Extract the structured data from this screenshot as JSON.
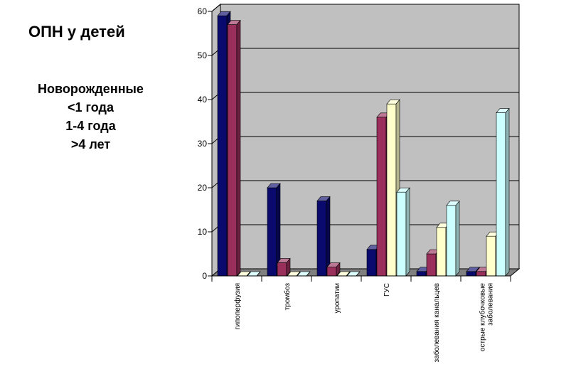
{
  "chart_data": {
    "type": "bar",
    "title": "ОПН у детей",
    "categories": [
      "гипоперфузия",
      "тромбоз",
      "уропатии",
      "ГУС",
      "заболевания канальцев",
      "острые клубочковые заболевания"
    ],
    "series": [
      {
        "name": "Новорожденные",
        "values": [
          59,
          20,
          17,
          6,
          1,
          1
        ]
      },
      {
        "name": "<1 года",
        "values": [
          57,
          3,
          2,
          36,
          5,
          1
        ]
      },
      {
        "name": "1-4 года",
        "values": [
          0,
          0,
          0,
          39,
          11,
          9
        ]
      },
      {
        "name": ">4 лет",
        "values": [
          0,
          0,
          0,
          19,
          16,
          37
        ]
      }
    ],
    "ylim": [
      0,
      60
    ],
    "yticks": [
      "0",
      "10",
      "20",
      "30",
      "40",
      "50",
      "60"
    ],
    "xlabel": "",
    "ylabel": "",
    "grid": true,
    "legend_placement": "left",
    "colors": {
      "series": [
        "#0a0a6e",
        "#9a2f5c",
        "#ffffcc",
        "#ccffff"
      ],
      "wall": "#c0c0c0",
      "floor": "#808080",
      "gridline": "#000000"
    }
  }
}
